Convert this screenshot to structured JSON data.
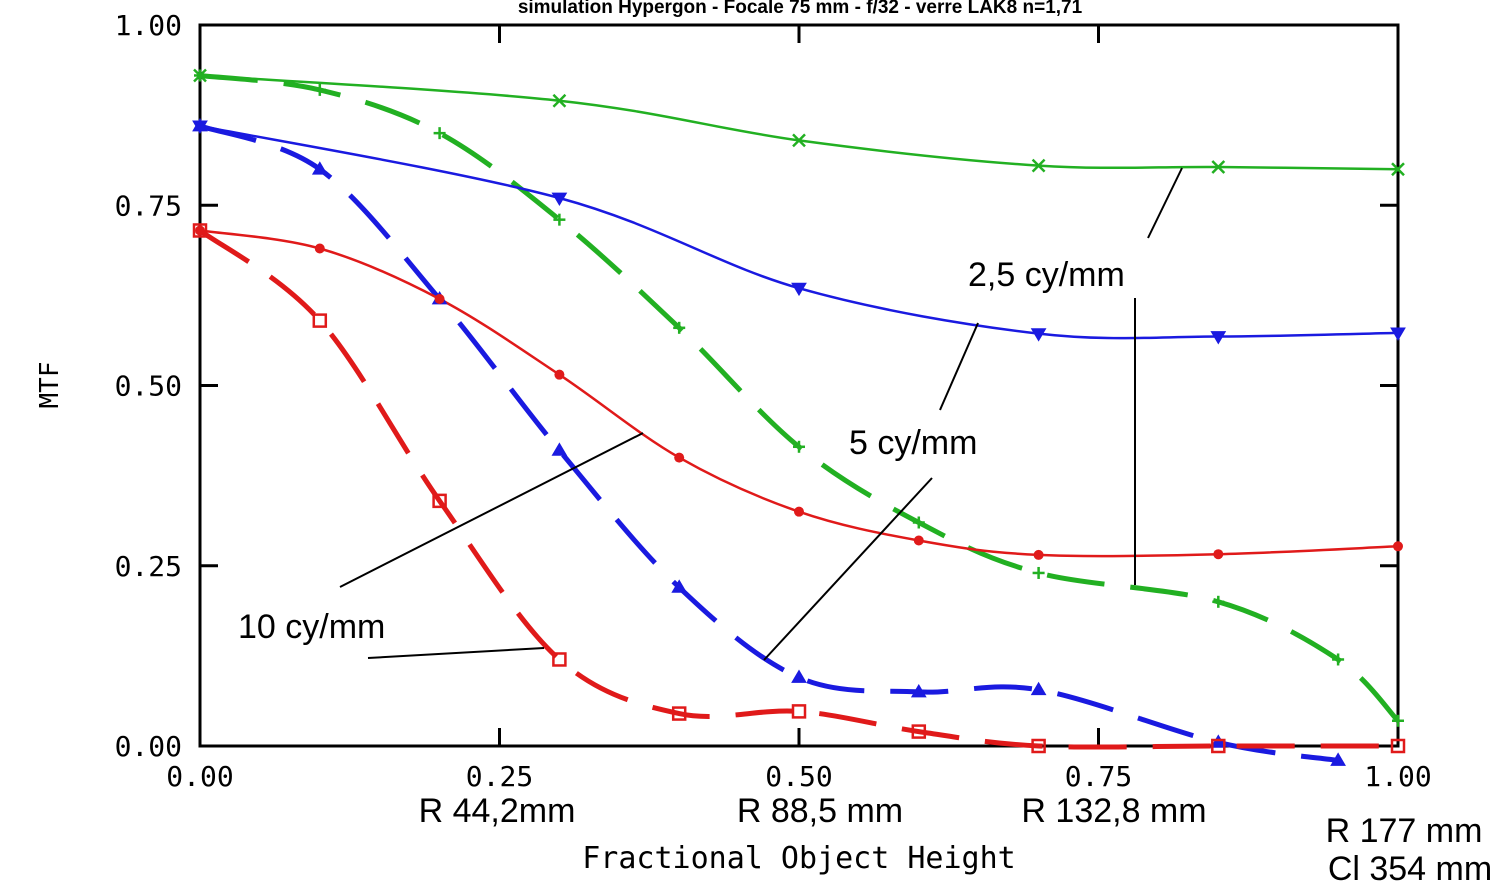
{
  "chart_data": {
    "type": "line",
    "title": "simulation Hypergon - Focale 75 mm - f/32 -  verre LAK8 n=1,71",
    "xlabel": "Fractional Object Height",
    "ylabel": "MTF",
    "xlim": [
      0,
      1
    ],
    "ylim": [
      0,
      1
    ],
    "x_ticks": [
      "0.00",
      "0.25",
      "0.50",
      "0.75",
      "1.00"
    ],
    "y_ticks": [
      "0.00",
      "0.25",
      "0.50",
      "0.75",
      "1.00"
    ],
    "x_secondary_labels": [
      "R 44,2mm",
      "R 88,5 mm",
      "R 132,8 mm",
      "R 177 mm",
      "Cl 354 mm"
    ],
    "grid": false,
    "series": [
      {
        "name": "2,5 cy/mm",
        "color": "#22b022",
        "style": "solid",
        "x": [
          0,
          0.3,
          0.5,
          0.7,
          0.85,
          1.0
        ],
        "y": [
          0.93,
          0.895,
          0.84,
          0.805,
          0.803,
          0.8
        ]
      },
      {
        "name": "2,5 cy/mm",
        "color": "#22b022",
        "style": "dashed",
        "x": [
          0,
          0.1,
          0.2,
          0.3,
          0.4,
          0.5,
          0.6,
          0.7,
          0.85,
          0.95,
          1.0
        ],
        "y": [
          0.93,
          0.91,
          0.85,
          0.73,
          0.58,
          0.415,
          0.31,
          0.24,
          0.2,
          0.12,
          0.035
        ]
      },
      {
        "name": "5 cy/mm",
        "color": "#1a1ae0",
        "style": "solid",
        "x": [
          0,
          0.3,
          0.5,
          0.7,
          0.85,
          1.0
        ],
        "y": [
          0.86,
          0.76,
          0.635,
          0.572,
          0.568,
          0.573
        ]
      },
      {
        "name": "5 cy/mm",
        "color": "#1a1ae0",
        "style": "dashed",
        "x": [
          0,
          0.1,
          0.2,
          0.3,
          0.4,
          0.5,
          0.6,
          0.7,
          0.85,
          0.95
        ],
        "y": [
          0.86,
          0.8,
          0.62,
          0.41,
          0.22,
          0.095,
          0.075,
          0.078,
          0.005,
          -0.02
        ]
      },
      {
        "name": "10 cy/mm",
        "color": "#e01a1a",
        "style": "solid",
        "x": [
          0,
          0.1,
          0.2,
          0.3,
          0.4,
          0.5,
          0.6,
          0.7,
          0.85,
          1.0
        ],
        "y": [
          0.715,
          0.69,
          0.62,
          0.515,
          0.4,
          0.325,
          0.285,
          0.265,
          0.266,
          0.277
        ]
      },
      {
        "name": "10 cy/mm",
        "color": "#e01a1a",
        "style": "dashed",
        "x": [
          0,
          0.1,
          0.2,
          0.3,
          0.4,
          0.5,
          0.6,
          0.7,
          0.85,
          1.0
        ],
        "y": [
          0.715,
          0.59,
          0.34,
          0.12,
          0.045,
          0.048,
          0.02,
          0.0,
          0.0,
          0.0
        ]
      }
    ],
    "annotations": [
      "2,5 cy/mm",
      "5 cy/mm",
      "10 cy/mm"
    ]
  }
}
